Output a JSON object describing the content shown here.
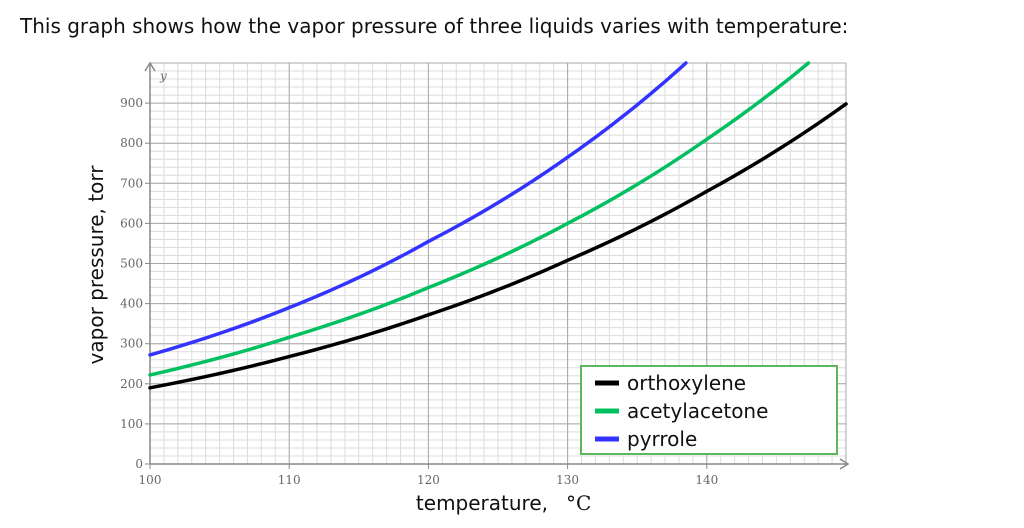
{
  "intro_text": "This graph shows how the vapor pressure of three liquids varies with temperature:",
  "chart_data": {
    "type": "line",
    "xlabel": "temperature,",
    "xunit": "°C",
    "ylabel": "vapor pressure, torr",
    "y_axis_var": "y",
    "xlim": [
      100,
      150
    ],
    "ylim": [
      0,
      1000
    ],
    "x_ticks": [
      100,
      110,
      120,
      130,
      140
    ],
    "y_ticks": [
      0,
      100,
      200,
      300,
      400,
      500,
      600,
      700,
      800,
      900
    ],
    "grid": true,
    "legend_position": "bottom-right",
    "series": [
      {
        "name": "orthoxylene",
        "color": "#000000",
        "x": [
          100,
          110,
          120,
          130,
          140,
          150
        ],
        "y": [
          190,
          268,
          372,
          508,
          680,
          898
        ]
      },
      {
        "name": "acetylacetone",
        "color": "#00c060",
        "x": [
          100,
          110,
          120,
          130,
          140,
          147.3
        ],
        "y": [
          222,
          316,
          440,
          600,
          810,
          1000
        ]
      },
      {
        "name": "pyrrole",
        "color": "#3333ff",
        "x": [
          100,
          110,
          120,
          130,
          138.5
        ],
        "y": [
          272,
          390,
          555,
          765,
          1000
        ]
      }
    ]
  }
}
